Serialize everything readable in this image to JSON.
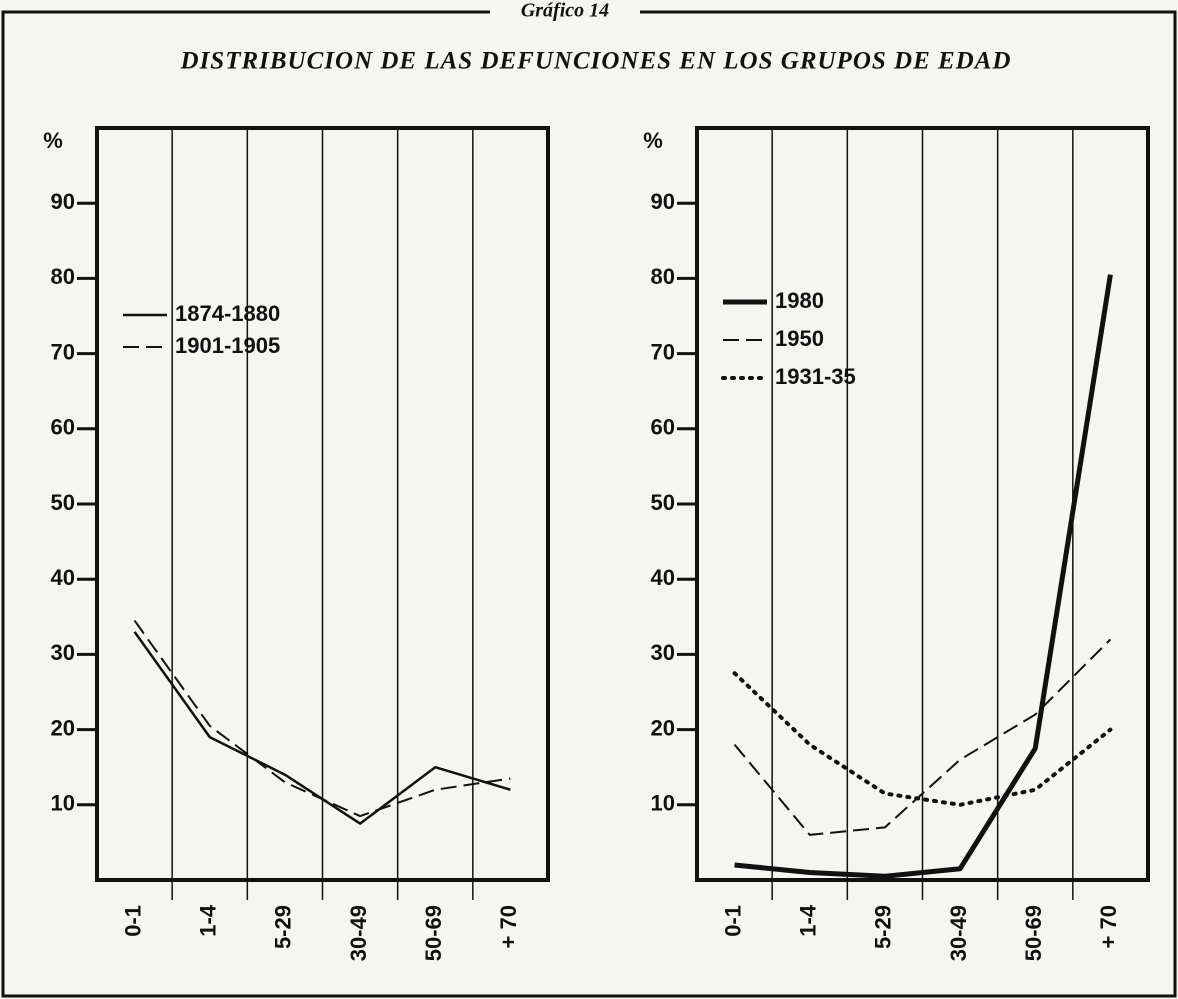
{
  "header": "Gráfico 14",
  "title": "DISTRIBUCION DE LAS DEFUNCIONES EN LOS GRUPOS DE EDAD",
  "chart_data": [
    {
      "type": "line",
      "ylabel": "%",
      "categories": [
        "0-1",
        "1-4",
        "5-29",
        "30-49",
        "50-69",
        "+ 70"
      ],
      "ylim": [
        0,
        100
      ],
      "yticks": [
        10,
        20,
        30,
        40,
        50,
        60,
        70,
        80,
        90
      ],
      "xgrid": true,
      "legend": "upper left",
      "series": [
        {
          "name": "1874-1880",
          "color": "#111111",
          "style": "solid",
          "width": 2.5,
          "values": [
            33,
            19,
            14,
            7.5,
            15,
            12
          ]
        },
        {
          "name": "1901-1905",
          "color": "#111111",
          "style": "dashed",
          "width": 2,
          "values": [
            34.5,
            20.5,
            13,
            8.5,
            12,
            13.5
          ]
        }
      ]
    },
    {
      "type": "line",
      "ylabel": "%",
      "categories": [
        "0-1",
        "1-4",
        "5-29",
        "30-49",
        "50-69",
        "+ 70"
      ],
      "ylim": [
        0,
        100
      ],
      "yticks": [
        10,
        20,
        30,
        40,
        50,
        60,
        70,
        80,
        90
      ],
      "xgrid": true,
      "legend": "upper left",
      "series": [
        {
          "name": "1980",
          "color": "#111111",
          "style": "solid",
          "width": 5,
          "values": [
            2,
            1,
            0.5,
            1.5,
            17.5,
            80.5
          ]
        },
        {
          "name": "1950",
          "color": "#111111",
          "style": "dashed",
          "width": 2,
          "values": [
            18,
            6,
            7,
            16,
            22,
            32
          ]
        },
        {
          "name": "1931-35",
          "color": "#111111",
          "style": "dotted",
          "width": 4,
          "values": [
            27.5,
            18,
            11.5,
            10,
            12,
            20
          ]
        }
      ]
    }
  ]
}
